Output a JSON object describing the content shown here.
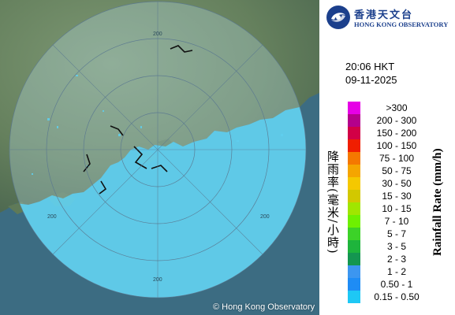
{
  "branding": {
    "name_cn": "香港天文台",
    "name_en": "HONG KONG OBSERVATORY",
    "logo_colors": [
      "#1b3f8c",
      "#ffffff"
    ]
  },
  "timestamp": {
    "time": "20:06 HKT",
    "date": "09-11-2025"
  },
  "map": {
    "range_rings": [
      {
        "label": "200"
      },
      {
        "label": "200"
      },
      {
        "label": "200"
      },
      {
        "label": "200"
      }
    ],
    "copyright": "© Hong Kong Observatory",
    "colors": {
      "sea": "#3c6c82",
      "land": "#6e8a66",
      "radar_echo": "#5fd0f0",
      "coverage_tint": "#b8dde6"
    }
  },
  "legend": {
    "title_cn": "降雨率(毫米/小時)",
    "title_en": "Rainfall Rate (mm/h)",
    "items": [
      {
        "label": ">300",
        "color": "#e600e6"
      },
      {
        "label": "200 - 300",
        "color": "#b4008c"
      },
      {
        "label": "150 - 200",
        "color": "#d20046"
      },
      {
        "label": "100 - 150",
        "color": "#f01e00"
      },
      {
        "label": "75 - 100",
        "color": "#f57800"
      },
      {
        "label": "50 - 75",
        "color": "#f5a500"
      },
      {
        "label": "30 - 50",
        "color": "#f5c800"
      },
      {
        "label": "15 - 30",
        "color": "#d2c800"
      },
      {
        "label": "10 - 15",
        "color": "#a0e600"
      },
      {
        "label": "7 - 10",
        "color": "#6ef000"
      },
      {
        "label": "5 - 7",
        "color": "#3cd228"
      },
      {
        "label": "3 - 5",
        "color": "#1eb43c"
      },
      {
        "label": "2 - 3",
        "color": "#149650"
      },
      {
        "label": "1 - 2",
        "color": "#3c96f0"
      },
      {
        "label": "0.50 - 1",
        "color": "#1e8cf5"
      },
      {
        "label": "0.15 - 0.50",
        "color": "#1ec8f5"
      }
    ]
  }
}
